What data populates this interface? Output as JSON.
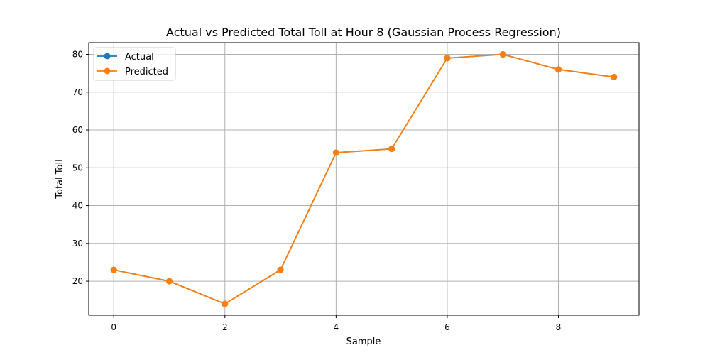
{
  "chart_data": {
    "type": "line",
    "title": "Actual vs Predicted Total Toll at Hour 8 (Gaussian Process Regression)",
    "xlabel": "Sample",
    "ylabel": "Total Toll",
    "xlim": [
      -0.45,
      9.45
    ],
    "ylim": [
      11,
      83.1
    ],
    "xticks": [
      0,
      2,
      4,
      6,
      8
    ],
    "yticks": [
      20,
      30,
      40,
      50,
      60,
      70,
      80
    ],
    "grid": true,
    "legend_position": "top-left",
    "x": [
      0,
      1,
      2,
      3,
      4,
      5,
      6,
      7,
      8,
      9
    ],
    "series": [
      {
        "name": "Actual",
        "color": "#1f77b4",
        "marker": "circle",
        "values": [
          23,
          20,
          14,
          23,
          54,
          55,
          79,
          80,
          76,
          74
        ]
      },
      {
        "name": "Predicted",
        "color": "#ff7f0e",
        "marker": "circle",
        "values": [
          23,
          20,
          14,
          23,
          54,
          55,
          79,
          80,
          76,
          74
        ]
      }
    ]
  }
}
